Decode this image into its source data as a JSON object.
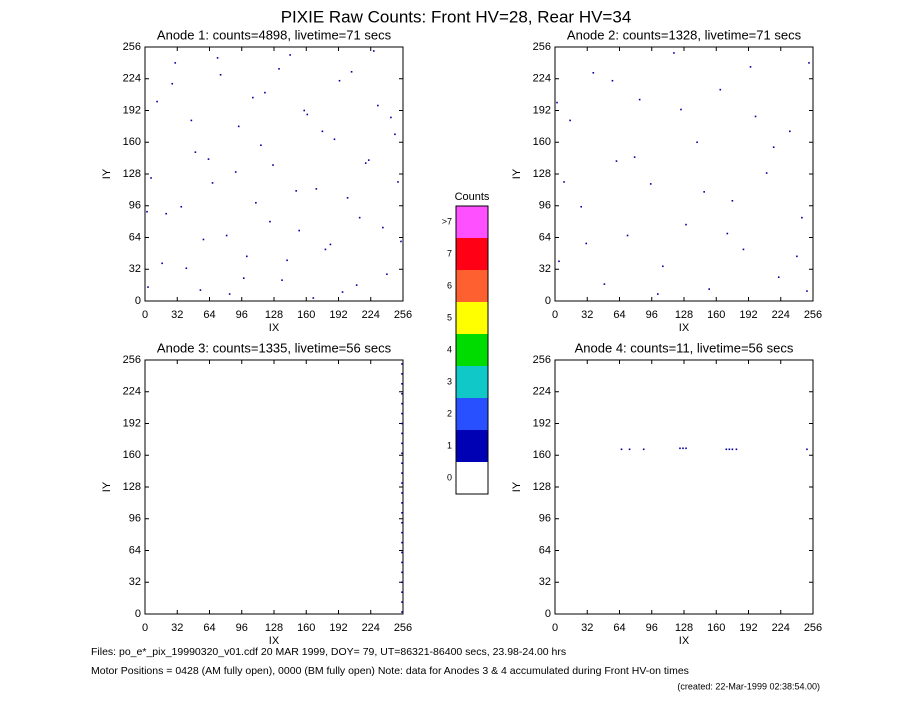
{
  "title": "PIXIE Raw Counts:  Front HV=28, Rear HV=34",
  "chart_data": [
    {
      "type": "scatter",
      "title": "Anode 1: counts=4898, livetime=71 secs",
      "x_label": "IX",
      "y_label": "IY",
      "xlim": [
        0,
        256
      ],
      "ylim": [
        0,
        256
      ],
      "xticks": [
        0,
        32,
        64,
        96,
        128,
        160,
        192,
        224,
        256
      ],
      "yticks": [
        0,
        32,
        64,
        96,
        128,
        160,
        192,
        224,
        256
      ],
      "series": [
        {
          "color": "#0000a0",
          "x": [
            3,
            12,
            21,
            30,
            41,
            50,
            58,
            67,
            75,
            84,
            93,
            101,
            110,
            119,
            127,
            136,
            144,
            153,
            161,
            170,
            179,
            188,
            196,
            205,
            213,
            222,
            231,
            240,
            248,
            254,
            6,
            17,
            27,
            36,
            46,
            55,
            63,
            72,
            81,
            90,
            98,
            107,
            115,
            124,
            133,
            141,
            150,
            158,
            167,
            176,
            184,
            193,
            201,
            210,
            219,
            227,
            236,
            244,
            251,
            2
          ],
          "y": [
            14,
            201,
            88,
            240,
            33,
            150,
            62,
            119,
            228,
            7,
            176,
            45,
            99,
            210,
            137,
            21,
            248,
            71,
            188,
            113,
            52,
            163,
            9,
            231,
            84,
            142,
            197,
            27,
            168,
            60,
            124,
            38,
            219,
            95,
            182,
            11,
            143,
            245,
            66,
            130,
            23,
            205,
            157,
            80,
            234,
            41,
            111,
            192,
            3,
            171,
            57,
            222,
            104,
            16,
            139,
            252,
            74,
            185,
            120,
            90
          ]
        }
      ]
    },
    {
      "type": "scatter",
      "title": "Anode 2: counts=1328, livetime=71 secs",
      "x_label": "IX",
      "y_label": "IY",
      "xlim": [
        0,
        256
      ],
      "ylim": [
        0,
        256
      ],
      "xticks": [
        0,
        32,
        64,
        96,
        128,
        160,
        192,
        224,
        256
      ],
      "yticks": [
        0,
        32,
        64,
        96,
        128,
        160,
        192,
        224,
        256
      ],
      "series": [
        {
          "color": "#0000a0",
          "x": [
            4,
            15,
            26,
            38,
            49,
            61,
            72,
            84,
            95,
            107,
            118,
            130,
            141,
            153,
            164,
            176,
            187,
            199,
            210,
            222,
            233,
            245,
            252,
            9,
            31,
            57,
            79,
            102,
            125,
            148,
            171,
            194,
            217,
            240,
            250,
            2
          ],
          "y": [
            40,
            182,
            95,
            230,
            17,
            141,
            66,
            203,
            118,
            35,
            250,
            77,
            160,
            12,
            213,
            101,
            52,
            186,
            129,
            24,
            171,
            84,
            240,
            120,
            58,
            222,
            145,
            7,
            193,
            110,
            68,
            236,
            155,
            45,
            10,
            200
          ]
        }
      ]
    },
    {
      "type": "scatter",
      "title": "Anode 3: counts=1335, livetime=56 secs",
      "x_label": "IX",
      "y_label": "IY",
      "xlim": [
        0,
        256
      ],
      "ylim": [
        0,
        256
      ],
      "xticks": [
        0,
        32,
        64,
        96,
        128,
        160,
        192,
        224,
        256
      ],
      "yticks": [
        0,
        32,
        64,
        96,
        128,
        160,
        192,
        224,
        256
      ],
      "series": [
        {
          "color": "#0000a0",
          "x": [
            255,
            255,
            255,
            255,
            255,
            255,
            255,
            255,
            255,
            255,
            255,
            255,
            255,
            255,
            255,
            255,
            255,
            255,
            255,
            255,
            255,
            255,
            255,
            255,
            255,
            255
          ],
          "y": [
            2,
            12,
            22,
            32,
            42,
            52,
            62,
            72,
            82,
            92,
            102,
            112,
            122,
            132,
            142,
            152,
            162,
            172,
            182,
            192,
            202,
            212,
            222,
            232,
            242,
            252
          ]
        }
      ]
    },
    {
      "type": "scatter",
      "title": "Anode 4: counts=11, livetime=56 secs",
      "x_label": "IX",
      "y_label": "IY",
      "xlim": [
        0,
        256
      ],
      "ylim": [
        0,
        256
      ],
      "xticks": [
        0,
        32,
        64,
        96,
        128,
        160,
        192,
        224,
        256
      ],
      "yticks": [
        0,
        32,
        64,
        96,
        128,
        160,
        192,
        224,
        256
      ],
      "series": [
        {
          "color": "#0000a0",
          "x": [
            66,
            74,
            88,
            124,
            127,
            130,
            170,
            173,
            176,
            180,
            250
          ],
          "y": [
            166,
            166,
            166,
            167,
            167,
            167,
            166,
            166,
            166,
            166,
            166
          ]
        }
      ]
    }
  ],
  "colorbar": {
    "title": "Counts",
    "levels": [
      {
        "label": "0",
        "color": "#ffffff"
      },
      {
        "label": "1",
        "color": "#0000b4"
      },
      {
        "label": "2",
        "color": "#2850ff"
      },
      {
        "label": "3",
        "color": "#10c8c8"
      },
      {
        "label": "4",
        "color": "#00dc00"
      },
      {
        "label": "5",
        "color": "#ffff00"
      },
      {
        "label": "6",
        "color": "#ff6030"
      },
      {
        "label": "7",
        "color": "#ff0014"
      },
      {
        "label": ">7",
        "color": "#ff50ff"
      }
    ]
  },
  "footer": [
    "Files: po_e*_pix_19990320_v01.cdf    20 MAR 1999, DOY= 79, UT=86321-86400 secs, 23.98-24.00 hrs",
    "Motor Positions = 0428 (AM fully open), 0000 (BM fully open)    Note: data for Anodes 3 & 4 accumulated during Front HV-on times",
    "(created: 22-Mar-1999 02:38:54.00)"
  ]
}
